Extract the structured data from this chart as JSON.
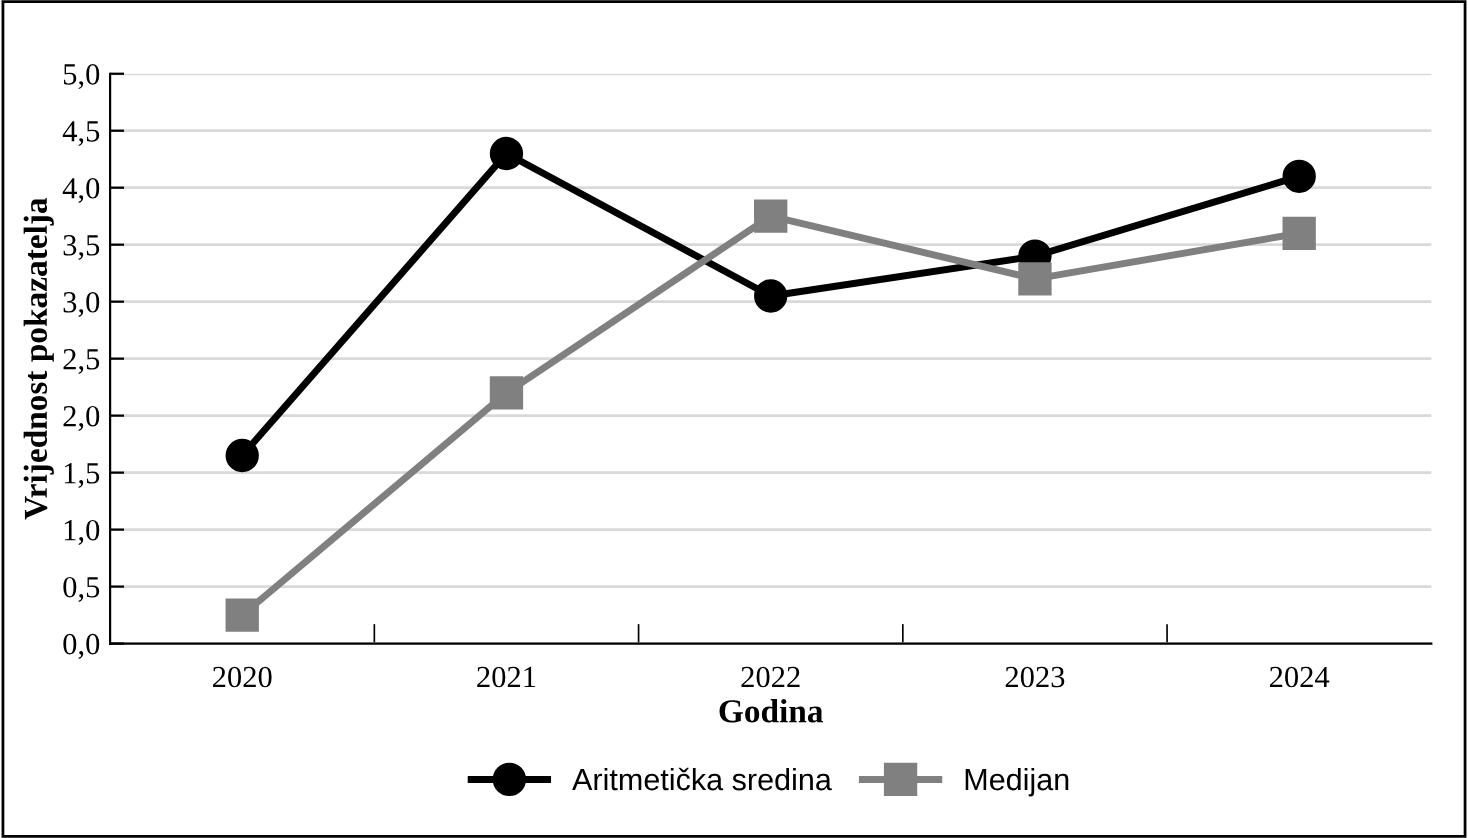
{
  "chart_data": {
    "type": "line",
    "xlabel": "Godina",
    "ylabel": "Vrijednost pokazatelja",
    "categories": [
      "2020",
      "2021",
      "2022",
      "2023",
      "2024"
    ],
    "series": [
      {
        "name": "Aritmetička sredina",
        "color": "#000000",
        "marker": "circle",
        "values": [
          1.65,
          4.3,
          3.05,
          3.4,
          4.1
        ]
      },
      {
        "name": "Medijan",
        "color": "#808080",
        "marker": "square",
        "values": [
          0.25,
          2.2,
          3.75,
          3.2,
          3.6
        ]
      }
    ],
    "ylim": [
      0,
      5
    ],
    "yticks": [
      {
        "value": 0,
        "label": "0,0"
      },
      {
        "value": 0.5,
        "label": "0,5"
      },
      {
        "value": 1,
        "label": "1,0"
      },
      {
        "value": 1.5,
        "label": "1,5"
      },
      {
        "value": 2,
        "label": "2,0"
      },
      {
        "value": 2.5,
        "label": "2,5"
      },
      {
        "value": 3,
        "label": "3,0"
      },
      {
        "value": 3.5,
        "label": "3,5"
      },
      {
        "value": 4,
        "label": "4,0"
      },
      {
        "value": 4.5,
        "label": "4,5"
      },
      {
        "value": 5,
        "label": "5,0"
      }
    ],
    "grid": "y",
    "legend": "bottom",
    "line_style": "solid"
  }
}
